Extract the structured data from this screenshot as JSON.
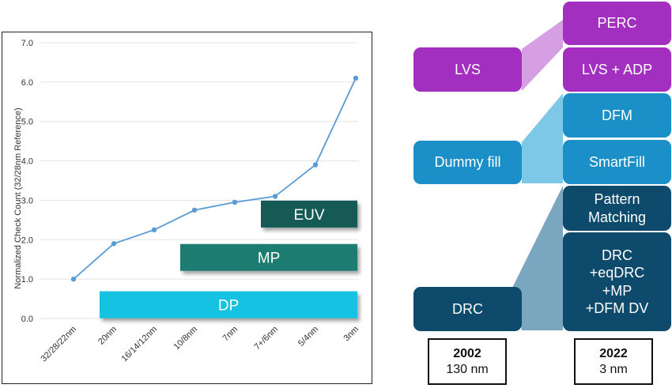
{
  "chart_data": {
    "type": "line",
    "ylabel": "Normalized Check Count (32/28nm Reference)",
    "ylim": [
      0,
      7
    ],
    "yticks": [
      "0.0",
      "1.0",
      "2.0",
      "3.0",
      "4.0",
      "5.0",
      "6.0",
      "7.0"
    ],
    "grid": true,
    "categories": [
      "32/28/22nm",
      "20nm",
      "16/14/12nm",
      "10/8nm",
      "7nm",
      "7+/6nm",
      "5/4nm",
      "3nm"
    ],
    "values": [
      1.0,
      1.9,
      2.25,
      2.75,
      2.95,
      3.1,
      3.9,
      6.1
    ],
    "color": "#5a9bd5",
    "bands": [
      {
        "label": "EUV",
        "y": 2.65,
        "start": 5,
        "end": 7.1,
        "color": "#155a56"
      },
      {
        "label": "MP",
        "y": 1.55,
        "start": 3,
        "end": 7.1,
        "color": "#1d7b72"
      },
      {
        "label": "DP",
        "y": 0.35,
        "start": 1,
        "end": 7.1,
        "color": "#13c2e2"
      }
    ]
  },
  "diagram": {
    "colors": {
      "purple": "#a22fbf",
      "purple_light": "#d69ee3",
      "blue": "#1b8fc7",
      "blue_light": "#7cc8e6",
      "navy": "#0e4a6b",
      "navy_light": "#7aa7bf"
    },
    "left": {
      "lvs": "LVS",
      "dummy_fill": "Dummy fill",
      "drc": "DRC"
    },
    "right": {
      "perc": "PERC",
      "lvs_adp": "LVS + ADP",
      "dfm": "DFM",
      "smartfill": "SmartFill",
      "pattern_matching": [
        "Pattern",
        "Matching"
      ],
      "drc_plus": [
        "DRC",
        "+eqDRC",
        "+MP",
        "+DFM DV"
      ]
    },
    "years": [
      {
        "year": "2002",
        "node": "130 nm"
      },
      {
        "year": "2022",
        "node": "3 nm"
      }
    ]
  }
}
